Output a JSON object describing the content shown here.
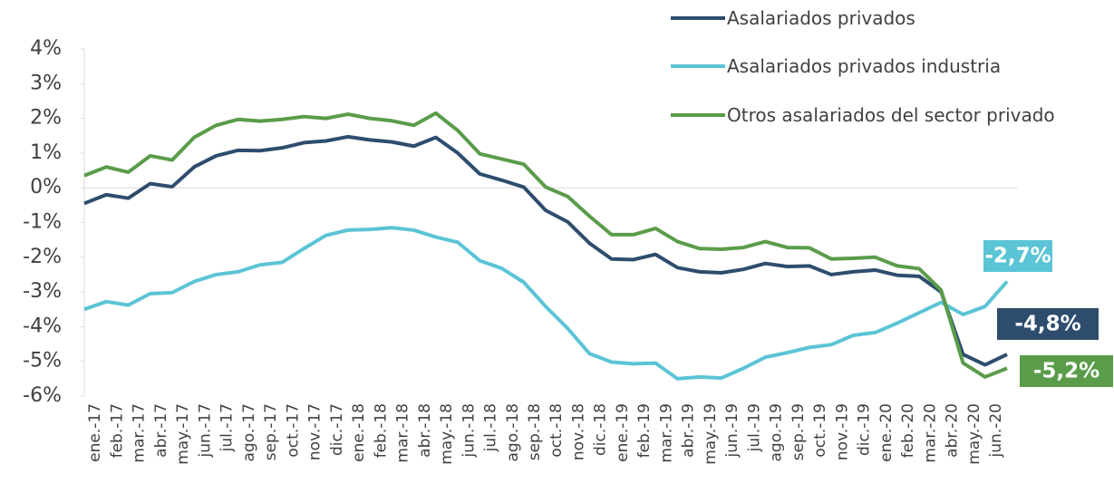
{
  "chart_data": {
    "type": "line",
    "categories": [
      null,
      "ene.-17",
      "feb.-17",
      "mar.-17",
      "abr.-17",
      "may.-17",
      "jun.-17",
      "jul.-17",
      "ago.-17",
      "sep.-17",
      "oct.-17",
      "nov.-17",
      "dic.-17",
      "ene.-18",
      "feb.-18",
      "mar.-18",
      "abr.-18",
      "may.-18",
      "jun.-18",
      "jul.-18",
      "ago.-18",
      "sep.-18",
      "oct.-18",
      "nov.-18",
      "dic.-18",
      "ene.-19",
      "feb.-19",
      "mar.-19",
      "abr.-19",
      "may.-19",
      "jun.-19",
      "jul.-19",
      "ago.-19",
      "sep.-19",
      "oct.-19",
      "nov.-19",
      "dic.-19",
      "ene.-20",
      "feb.-20",
      "mar.-20",
      "abr.-20",
      "may.-20",
      "jun.-20"
    ],
    "series": [
      {
        "name": "Asalariados privados",
        "color": "#2e4d6e",
        "values": [
          -0.45,
          -0.2,
          -0.3,
          0.12,
          0.03,
          0.6,
          0.92,
          1.08,
          1.07,
          1.15,
          1.3,
          1.35,
          1.47,
          1.38,
          1.32,
          1.2,
          1.45,
          1.0,
          0.4,
          0.22,
          0.02,
          -0.65,
          -0.98,
          -1.6,
          -2.05,
          -2.07,
          -1.92,
          -2.3,
          -2.42,
          -2.45,
          -2.35,
          -2.18,
          -2.27,
          -2.25,
          -2.5,
          -2.42,
          -2.37,
          -2.52,
          -2.55,
          -3.0,
          -4.8,
          -5.1,
          -4.8
        ],
        "value_labels": [
          null,
          null,
          null,
          null,
          null,
          null,
          null,
          null,
          null,
          null,
          null,
          null,
          null,
          null,
          null,
          null,
          null,
          null,
          null,
          null,
          null,
          null,
          null,
          null,
          null,
          null,
          null,
          null,
          null,
          null,
          null,
          null,
          null,
          null,
          null,
          null,
          null,
          null,
          null,
          null,
          null,
          null,
          "-4,8%"
        ]
      },
      {
        "name": "Asalariados privados industria",
        "color": "#5bc4d6",
        "values": [
          -3.5,
          -3.28,
          -3.38,
          -3.05,
          -3.02,
          -2.7,
          -2.5,
          -2.42,
          -2.22,
          -2.15,
          -1.75,
          -1.37,
          -1.22,
          -1.2,
          -1.15,
          -1.22,
          -1.42,
          -1.57,
          -2.1,
          -2.32,
          -2.72,
          -3.42,
          -4.05,
          -4.78,
          -5.02,
          -5.07,
          -5.05,
          -5.5,
          -5.45,
          -5.48,
          -5.2,
          -4.88,
          -4.75,
          -4.6,
          -4.52,
          -4.25,
          -4.17,
          -3.9,
          -3.6,
          -3.3,
          -3.65,
          -3.42,
          -2.7
        ],
        "value_labels": [
          null,
          null,
          null,
          null,
          null,
          null,
          null,
          null,
          null,
          null,
          null,
          null,
          null,
          null,
          null,
          null,
          null,
          null,
          null,
          null,
          null,
          null,
          null,
          null,
          null,
          null,
          null,
          null,
          null,
          null,
          null,
          null,
          null,
          null,
          null,
          null,
          null,
          null,
          null,
          null,
          null,
          null,
          "-2,7%"
        ]
      },
      {
        "name": "Otros asalariados del sector privado",
        "color": "#5a9c4a",
        "values": [
          0.35,
          0.6,
          0.45,
          0.92,
          0.8,
          1.45,
          1.8,
          1.97,
          1.92,
          1.97,
          2.05,
          2.0,
          2.12,
          2.0,
          1.93,
          1.8,
          2.15,
          1.65,
          0.98,
          0.83,
          0.68,
          0.02,
          -0.25,
          -0.82,
          -1.35,
          -1.35,
          -1.17,
          -1.55,
          -1.75,
          -1.77,
          -1.72,
          -1.55,
          -1.72,
          -1.73,
          -2.05,
          -2.03,
          -2.0,
          -2.25,
          -2.33,
          -2.95,
          -5.05,
          -5.45,
          -5.2
        ],
        "value_labels": [
          null,
          null,
          null,
          null,
          null,
          null,
          null,
          null,
          null,
          null,
          null,
          null,
          null,
          null,
          null,
          null,
          null,
          null,
          null,
          null,
          null,
          null,
          null,
          null,
          null,
          null,
          null,
          null,
          null,
          null,
          null,
          null,
          null,
          null,
          null,
          null,
          null,
          null,
          null,
          null,
          null,
          null,
          "-5,2%"
        ]
      }
    ],
    "ylim": [
      -6,
      4
    ],
    "yticks": [
      {
        "value": -6,
        "label": "-6%"
      },
      {
        "value": -5,
        "label": "-5%"
      },
      {
        "value": -4,
        "label": "-4%"
      },
      {
        "value": -3,
        "label": "-3%"
      },
      {
        "value": -2,
        "label": "-2%"
      },
      {
        "value": -1,
        "label": "-1%"
      },
      {
        "value": 0,
        "label": "0%"
      },
      {
        "value": 1,
        "label": "1%"
      },
      {
        "value": 2,
        "label": "2%"
      },
      {
        "value": 3,
        "label": "3%"
      },
      {
        "value": 4,
        "label": "4%"
      }
    ],
    "grid": false,
    "legend": "top-right"
  }
}
